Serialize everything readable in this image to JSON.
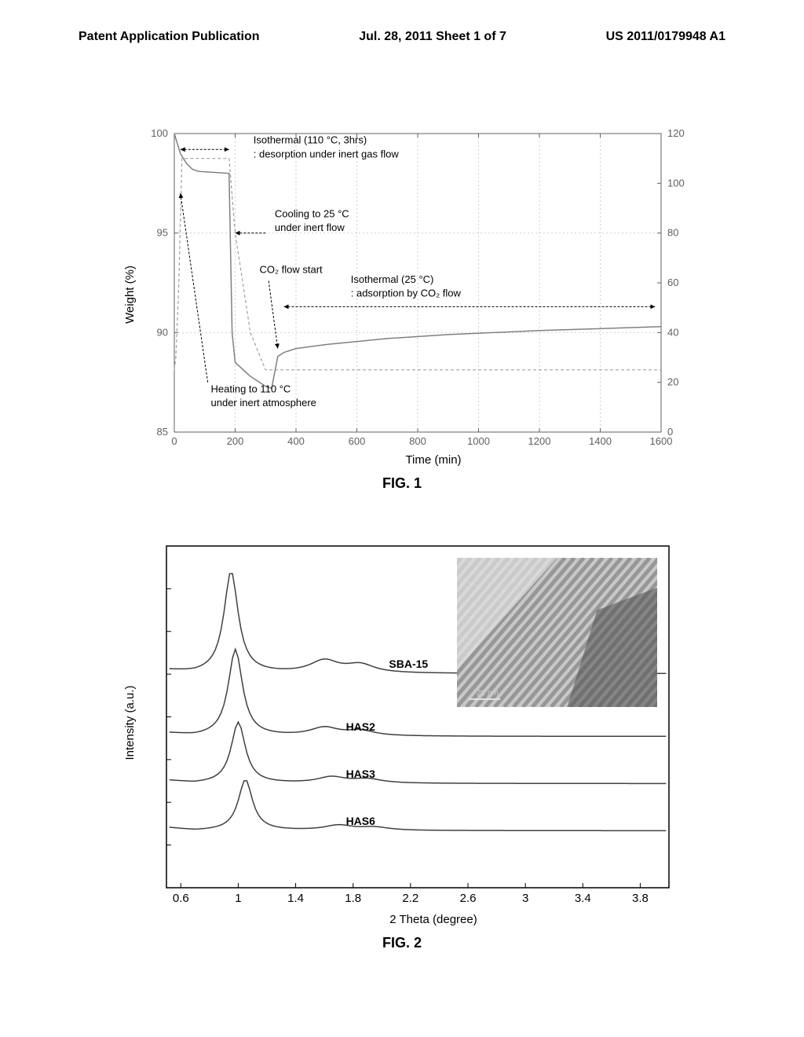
{
  "header": {
    "left": "Patent Application Publication",
    "center": "Jul. 28, 2011  Sheet 1 of 7",
    "right": "US 2011/0179948 A1"
  },
  "fig1": {
    "caption": "FIG. 1",
    "type": "line",
    "xlabel": "Time (min)",
    "ylabel_left": "Weight (%)",
    "xlim": [
      0,
      1600
    ],
    "ylim_left": [
      85,
      100
    ],
    "ylim_right": [
      0,
      120
    ],
    "xticks": [
      0,
      200,
      400,
      600,
      800,
      1000,
      1200,
      1400,
      1600
    ],
    "yticks_left": [
      85,
      90,
      95,
      100
    ],
    "yticks_right": [
      0,
      20,
      40,
      60,
      80,
      100,
      120
    ],
    "background_color": "#ffffff",
    "grid_color": "#d0d0d0",
    "annotations": {
      "isothermal_desorb": {
        "line1": "Isothermal (110 °C, 3hrs)",
        "line2": ": desorption under inert gas flow"
      },
      "cooling": {
        "line1": "Cooling to 25 °C",
        "line2": "under inert flow"
      },
      "co2_start": "CO₂ flow start",
      "isothermal_adsorb": {
        "line1": "Isothermal (25 °C)",
        "line2": ": adsorption by CO₂ flow"
      },
      "heating": {
        "line1": "Heating to 110 °C",
        "line2": "under inert atmosphere"
      }
    },
    "weight_curve": {
      "color": "#808080",
      "points": [
        [
          0,
          100
        ],
        [
          20,
          99
        ],
        [
          40,
          98.5
        ],
        [
          60,
          98.2
        ],
        [
          80,
          98.1
        ],
        [
          180,
          98.0
        ],
        [
          185,
          94
        ],
        [
          190,
          90
        ],
        [
          200,
          88.5
        ],
        [
          250,
          87.8
        ],
        [
          280,
          87.5
        ],
        [
          300,
          87.3
        ],
        [
          320,
          87.2
        ],
        [
          340,
          88.8
        ],
        [
          360,
          89.0
        ],
        [
          400,
          89.2
        ],
        [
          500,
          89.4
        ],
        [
          700,
          89.7
        ],
        [
          900,
          89.9
        ],
        [
          1200,
          90.1
        ],
        [
          1600,
          90.3
        ]
      ]
    },
    "temp_curve": {
      "color": "#a0a0a0",
      "dash": "4,3",
      "points": [
        [
          0,
          25
        ],
        [
          5,
          30
        ],
        [
          15,
          60
        ],
        [
          25,
          110
        ],
        [
          180,
          110
        ],
        [
          200,
          80
        ],
        [
          250,
          40
        ],
        [
          300,
          25
        ],
        [
          350,
          25
        ],
        [
          1600,
          25
        ]
      ]
    }
  },
  "fig2": {
    "caption": "FIG. 2",
    "type": "line",
    "xlabel": "2 Theta (degree)",
    "ylabel": "Intensity (a.u.)",
    "xlim": [
      0.5,
      4.0
    ],
    "xticks": [
      0.6,
      1,
      1.4,
      1.8,
      2.2,
      2.6,
      3,
      3.4,
      3.8
    ],
    "background_color": "#ffffff",
    "line_color": "#404040",
    "inset_label": "20 nm",
    "series": [
      {
        "label": "SBA-15",
        "offset": 0,
        "peak_x": 0.95,
        "peak_height": 100,
        "secondary_peaks": [
          [
            1.6,
            12
          ],
          [
            1.85,
            8
          ]
        ]
      },
      {
        "label": "HAS2",
        "offset": -40,
        "peak_x": 0.98,
        "peak_height": 85,
        "secondary_peaks": [
          [
            1.6,
            8
          ],
          [
            1.85,
            5
          ]
        ]
      },
      {
        "label": "HAS3",
        "offset": -70,
        "peak_x": 1.0,
        "peak_height": 60,
        "secondary_peaks": [
          [
            1.65,
            6
          ],
          [
            1.9,
            4
          ]
        ]
      },
      {
        "label": "HAS6",
        "offset": -100,
        "peak_x": 1.05,
        "peak_height": 50,
        "secondary_peaks": [
          [
            1.7,
            5
          ],
          [
            1.95,
            3
          ]
        ]
      }
    ]
  }
}
